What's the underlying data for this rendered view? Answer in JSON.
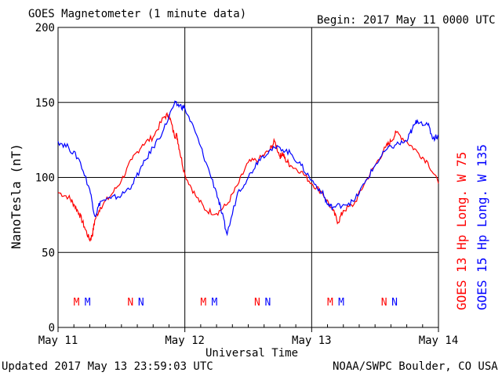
{
  "header": {
    "title": "GOES Magnetometer (1 minute data)",
    "begin": "Begin:  2017 May 11 0000 UTC"
  },
  "footer": {
    "updated": "Updated 2017 May 13 23:59:03 UTC",
    "credit": "NOAA/SWPC Boulder, CO USA"
  },
  "legend": {
    "goes13": "GOES 13 Hp  Long. W 75",
    "goes15": "GOES 15 Hp  Long. W 135"
  },
  "colors": {
    "goes13": "#ff0000",
    "goes15": "#0000ff",
    "grid": "#000000"
  },
  "chart_data": {
    "type": "line",
    "title": "GOES Magnetometer (1 minute data)",
    "xlabel": "Universal Time",
    "ylabel": "NanoTesla (nT)",
    "xlim": [
      0,
      72
    ],
    "ylim": [
      0,
      200
    ],
    "x_unit": "hours since 2017 May 11 0000 UTC",
    "x_ticks": [
      {
        "x": 0,
        "label": "May 11"
      },
      {
        "x": 24,
        "label": "May 12"
      },
      {
        "x": 48,
        "label": "May 13"
      },
      {
        "x": 72,
        "label": "May 14"
      }
    ],
    "y_ticks": [
      0,
      50,
      100,
      150,
      200
    ],
    "grid": true,
    "series": [
      {
        "name": "GOES 13 Hp  Long. W 75",
        "color": "#ff0000",
        "x": [
          0,
          2,
          3,
          4,
          5,
          6,
          6.5,
          7,
          8,
          10,
          12,
          14,
          16,
          18,
          20,
          21,
          22,
          22.5,
          23,
          24,
          26,
          28,
          30,
          32,
          34,
          36,
          38,
          40,
          41,
          42,
          42.5,
          43,
          44,
          46,
          48,
          50,
          52,
          53,
          54,
          56,
          58,
          60,
          62,
          63,
          64,
          66,
          68,
          70,
          72
        ],
        "y": [
          90,
          87,
          82,
          76,
          67,
          58,
          62,
          72,
          80,
          88,
          98,
          112,
          122,
          127,
          140,
          142,
          128,
          128,
          118,
          102,
          88,
          78,
          76,
          82,
          95,
          110,
          112,
          118,
          124,
          114,
          116,
          112,
          108,
          104,
          96,
          90,
          78,
          70,
          78,
          82,
          96,
          108,
          120,
          124,
          130,
          124,
          117,
          110,
          96
        ]
      },
      {
        "name": "GOES 15 Hp  Long. W 135",
        "color": "#0000ff",
        "x": [
          0,
          2,
          4,
          6,
          7,
          8,
          10,
          12,
          14,
          16,
          18,
          20,
          22,
          23,
          24,
          26,
          28,
          30,
          31,
          32,
          34,
          36,
          38,
          40,
          42,
          44,
          46,
          48,
          50,
          51,
          52,
          54,
          56,
          58,
          60,
          62,
          64,
          66,
          67,
          68,
          70,
          71,
          72
        ],
        "y": [
          124,
          120,
          112,
          92,
          74,
          84,
          86,
          88,
          95,
          108,
          120,
          132,
          149,
          148,
          146,
          130,
          110,
          90,
          76,
          62,
          90,
          100,
          112,
          118,
          120,
          116,
          108,
          98,
          90,
          82,
          80,
          82,
          84,
          96,
          108,
          118,
          122,
          124,
          132,
          138,
          135,
          126,
          128
        ]
      }
    ],
    "markers": [
      {
        "x": 3.5,
        "label": "M",
        "series": "GOES 13 Hp  Long. W 75"
      },
      {
        "x": 5.6,
        "label": "M",
        "series": "GOES 15 Hp  Long. W 135"
      },
      {
        "x": 13.7,
        "label": "N",
        "series": "GOES 13 Hp  Long. W 75"
      },
      {
        "x": 15.7,
        "label": "N",
        "series": "GOES 15 Hp  Long. W 135"
      },
      {
        "x": 27.5,
        "label": "M",
        "series": "GOES 13 Hp  Long. W 75"
      },
      {
        "x": 29.6,
        "label": "M",
        "series": "GOES 15 Hp  Long. W 135"
      },
      {
        "x": 37.7,
        "label": "N",
        "series": "GOES 13 Hp  Long. W 75"
      },
      {
        "x": 39.7,
        "label": "N",
        "series": "GOES 15 Hp  Long. W 135"
      },
      {
        "x": 51.5,
        "label": "M",
        "series": "GOES 13 Hp  Long. W 75"
      },
      {
        "x": 53.6,
        "label": "M",
        "series": "GOES 15 Hp  Long. W 135"
      },
      {
        "x": 61.7,
        "label": "N",
        "series": "GOES 13 Hp  Long. W 75"
      },
      {
        "x": 63.7,
        "label": "N",
        "series": "GOES 15 Hp  Long. W 135"
      }
    ]
  }
}
